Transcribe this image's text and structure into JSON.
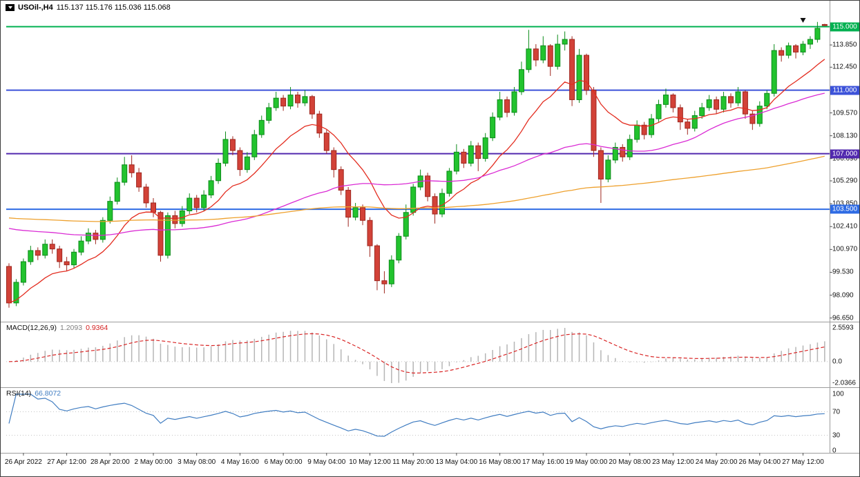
{
  "window": {
    "title": "USOil-,H4 115.137 115.176 115.036 115.068"
  },
  "header": {
    "symbol_period": "USOil-,H4",
    "ohlc": "115.137 115.176 115.036 115.068"
  },
  "colors": {
    "background": "#ffffff",
    "candle_up": "#22c32e",
    "candle_up_border": "#0c8a1a",
    "candle_down": "#d24238",
    "candle_down_border": "#9e261e",
    "ma_fast": "#e32c1f",
    "ma_medium": "#da2ad4",
    "ma_slow": "#eea02c",
    "macd_hist": "#b5b5b5",
    "macd_signal": "#d92424",
    "rsi_line": "#3f7cc1",
    "level_dotted": "#c4c4c4",
    "separator": "#9b9b9b",
    "axis_text": "#111111"
  },
  "chart_data": {
    "type": "candlestick",
    "symbol": "USOil-",
    "timeframe": "H4",
    "title": "USOil-,H4 115.137 115.176 115.036 115.068",
    "current_bar": {
      "open": 115.137,
      "high": 115.176,
      "low": 115.036,
      "close": 115.068
    },
    "ylim": [
      96.55,
      115.42
    ],
    "price_ticks": [
      {
        "label": "113.850",
        "price": 113.85
      },
      {
        "label": "112.450",
        "price": 112.45
      },
      {
        "label": "109.570",
        "price": 109.57
      },
      {
        "label": "108.130",
        "price": 108.13
      },
      {
        "label": "106.690",
        "price": 106.69
      },
      {
        "label": "105.290",
        "price": 105.29
      },
      {
        "label": "103.850",
        "price": 103.85
      },
      {
        "label": "102.410",
        "price": 102.41
      },
      {
        "label": "100.970",
        "price": 100.97
      },
      {
        "label": "99.530",
        "price": 99.53
      },
      {
        "label": "98.090",
        "price": 98.09
      },
      {
        "label": "96.650",
        "price": 96.65
      }
    ],
    "hlines": [
      {
        "label": "115.000",
        "price": 115.0,
        "color": "#00b050"
      },
      {
        "label": "111.000",
        "price": 111.0,
        "color": "#3c52d9"
      },
      {
        "label": "107.000",
        "price": 107.0,
        "color": "#5128ae"
      },
      {
        "label": "103.500",
        "price": 103.5,
        "color": "#2e6be4"
      }
    ],
    "moving_averages": [
      {
        "name": "fast",
        "method": "ema",
        "period": 13,
        "color": "#e32c1f",
        "seed": null
      },
      {
        "name": "medium",
        "method": "sma",
        "period": 45,
        "color": "#da2ad4",
        "seed": 102.4
      },
      {
        "name": "slow",
        "method": "sma",
        "period": 120,
        "color": "#eea02c",
        "seed": 103.0
      }
    ],
    "candles": [
      [
        99.9,
        100.1,
        97.3,
        97.6
      ],
      [
        97.6,
        99.1,
        97.4,
        98.9
      ],
      [
        98.9,
        100.4,
        98.7,
        100.2
      ],
      [
        100.2,
        101.2,
        100.0,
        100.9
      ],
      [
        100.9,
        101.1,
        100.3,
        100.6
      ],
      [
        100.6,
        101.6,
        100.4,
        101.3
      ],
      [
        101.3,
        101.6,
        100.7,
        101.0
      ],
      [
        101.0,
        101.2,
        99.8,
        100.2
      ],
      [
        100.2,
        100.5,
        99.6,
        100.0
      ],
      [
        100.0,
        101.0,
        99.8,
        100.8
      ],
      [
        100.8,
        101.8,
        100.6,
        101.5
      ],
      [
        101.5,
        102.3,
        101.3,
        102.0
      ],
      [
        102.0,
        102.2,
        101.3,
        101.6
      ],
      [
        101.6,
        103.0,
        101.4,
        102.8
      ],
      [
        102.8,
        104.3,
        102.6,
        104.0
      ],
      [
        104.0,
        105.5,
        103.8,
        105.2
      ],
      [
        105.2,
        106.8,
        105.0,
        106.3
      ],
      [
        106.3,
        106.9,
        105.5,
        105.8
      ],
      [
        105.8,
        106.1,
        104.6,
        104.9
      ],
      [
        104.9,
        105.1,
        103.6,
        103.9
      ],
      [
        103.9,
        104.2,
        103.0,
        103.3
      ],
      [
        103.3,
        103.4,
        100.2,
        100.6
      ],
      [
        100.6,
        103.3,
        100.4,
        103.1
      ],
      [
        103.1,
        103.4,
        102.3,
        102.6
      ],
      [
        102.6,
        103.7,
        102.4,
        103.4
      ],
      [
        103.4,
        104.5,
        103.2,
        104.2
      ],
      [
        104.2,
        104.4,
        103.3,
        103.6
      ],
      [
        103.6,
        104.7,
        103.4,
        104.4
      ],
      [
        104.4,
        105.6,
        104.2,
        105.3
      ],
      [
        105.3,
        106.7,
        105.1,
        106.4
      ],
      [
        106.4,
        108.4,
        106.2,
        107.9
      ],
      [
        107.9,
        108.1,
        106.9,
        107.2
      ],
      [
        107.2,
        107.4,
        105.6,
        106.0
      ],
      [
        106.0,
        107.1,
        105.8,
        106.8
      ],
      [
        106.8,
        108.5,
        106.6,
        108.2
      ],
      [
        108.2,
        109.4,
        108.0,
        109.1
      ],
      [
        109.1,
        110.2,
        108.9,
        109.9
      ],
      [
        109.9,
        110.9,
        109.7,
        110.5
      ],
      [
        110.5,
        110.7,
        109.7,
        110.0
      ],
      [
        110.0,
        111.2,
        109.8,
        110.7
      ],
      [
        110.7,
        110.9,
        109.9,
        110.2
      ],
      [
        110.2,
        111.0,
        110.0,
        110.6
      ],
      [
        110.6,
        110.7,
        109.2,
        109.5
      ],
      [
        109.5,
        109.7,
        108.0,
        108.3
      ],
      [
        108.3,
        108.5,
        107.0,
        107.2
      ],
      [
        107.2,
        107.4,
        105.5,
        106.0
      ],
      [
        106.0,
        106.2,
        104.4,
        104.7
      ],
      [
        104.7,
        104.9,
        102.4,
        103.0
      ],
      [
        103.0,
        103.9,
        102.8,
        103.6
      ],
      [
        103.6,
        103.8,
        102.5,
        102.8
      ],
      [
        102.8,
        103.0,
        100.5,
        101.2
      ],
      [
        101.2,
        101.3,
        98.4,
        99.0
      ],
      [
        99.0,
        99.6,
        98.2,
        98.8
      ],
      [
        98.8,
        100.6,
        98.6,
        100.3
      ],
      [
        100.3,
        102.0,
        100.1,
        101.8
      ],
      [
        101.8,
        103.8,
        101.6,
        103.3
      ],
      [
        103.3,
        105.1,
        103.1,
        104.9
      ],
      [
        104.9,
        106.0,
        104.7,
        105.6
      ],
      [
        105.6,
        105.8,
        104.0,
        104.3
      ],
      [
        104.3,
        104.5,
        102.6,
        103.2
      ],
      [
        103.2,
        104.8,
        103.0,
        104.5
      ],
      [
        104.5,
        106.1,
        104.3,
        105.9
      ],
      [
        105.9,
        107.6,
        105.7,
        107.1
      ],
      [
        107.1,
        107.3,
        106.1,
        106.4
      ],
      [
        106.4,
        107.8,
        106.2,
        107.5
      ],
      [
        107.5,
        107.7,
        105.9,
        106.7
      ],
      [
        106.7,
        108.3,
        106.5,
        108.0
      ],
      [
        108.0,
        109.6,
        107.8,
        109.3
      ],
      [
        109.3,
        110.9,
        109.1,
        110.4
      ],
      [
        110.4,
        110.6,
        109.3,
        109.6
      ],
      [
        109.6,
        111.2,
        109.4,
        110.9
      ],
      [
        110.9,
        112.8,
        110.7,
        112.3
      ],
      [
        112.3,
        114.8,
        112.1,
        113.6
      ],
      [
        113.6,
        113.9,
        112.5,
        112.9
      ],
      [
        112.9,
        114.4,
        112.7,
        113.8
      ],
      [
        113.8,
        113.9,
        111.9,
        112.5
      ],
      [
        112.5,
        114.5,
        112.3,
        113.9
      ],
      [
        113.9,
        114.7,
        113.5,
        114.2
      ],
      [
        114.2,
        114.4,
        110.0,
        110.4
      ],
      [
        110.4,
        113.6,
        110.2,
        113.2
      ],
      [
        113.2,
        113.3,
        110.7,
        111.0
      ],
      [
        111.0,
        111.2,
        106.8,
        107.2
      ],
      [
        107.2,
        107.4,
        103.9,
        105.4
      ],
      [
        105.4,
        106.9,
        105.2,
        106.6
      ],
      [
        106.6,
        107.7,
        106.4,
        107.4
      ],
      [
        107.4,
        107.6,
        106.5,
        106.8
      ],
      [
        106.8,
        108.2,
        106.6,
        107.9
      ],
      [
        107.9,
        109.1,
        107.7,
        108.8
      ],
      [
        108.8,
        109.0,
        107.9,
        108.2
      ],
      [
        108.2,
        109.5,
        108.0,
        109.2
      ],
      [
        109.2,
        110.4,
        109.0,
        110.1
      ],
      [
        110.1,
        111.1,
        109.9,
        110.7
      ],
      [
        110.7,
        110.8,
        109.6,
        109.9
      ],
      [
        109.9,
        110.1,
        108.5,
        109.0
      ],
      [
        109.0,
        109.2,
        108.2,
        108.6
      ],
      [
        108.6,
        109.7,
        108.4,
        109.4
      ],
      [
        109.4,
        110.2,
        109.2,
        109.9
      ],
      [
        109.9,
        110.7,
        109.7,
        110.4
      ],
      [
        110.4,
        110.6,
        109.5,
        109.8
      ],
      [
        109.8,
        110.9,
        109.6,
        110.6
      ],
      [
        110.6,
        110.8,
        109.9,
        110.2
      ],
      [
        110.2,
        111.2,
        110.0,
        110.9
      ],
      [
        110.9,
        111.0,
        109.2,
        109.5
      ],
      [
        109.5,
        109.7,
        108.5,
        108.9
      ],
      [
        108.9,
        110.3,
        108.7,
        110.0
      ],
      [
        110.0,
        111.0,
        109.8,
        110.8
      ],
      [
        110.8,
        113.9,
        110.6,
        113.5
      ],
      [
        113.5,
        113.7,
        112.8,
        113.2
      ],
      [
        113.2,
        114.0,
        113.0,
        113.8
      ],
      [
        113.8,
        113.9,
        113.0,
        113.4
      ],
      [
        113.4,
        114.1,
        113.2,
        113.9
      ],
      [
        113.9,
        114.4,
        113.6,
        114.2
      ],
      [
        114.2,
        115.3,
        114.0,
        114.9
      ],
      [
        115.14,
        115.18,
        115.04,
        115.07
      ]
    ],
    "time_axis": {
      "labels": [
        "26 Apr 2022",
        "27 Apr 12:00",
        "28 Apr 20:00",
        "2 May 00:00",
        "3 May 08:00",
        "4 May 16:00",
        "6 May 00:00",
        "9 May 04:00",
        "10 May 12:00",
        "11 May 20:00",
        "13 May 04:00",
        "16 May 08:00",
        "17 May 16:00",
        "19 May 00:00",
        "20 May 08:00",
        "23 May 12:00",
        "24 May 20:00",
        "26 May 04:00",
        "27 May 12:00"
      ],
      "bar_indices": [
        2,
        8,
        14,
        20,
        26,
        32,
        38,
        44,
        50,
        56,
        62,
        68,
        74,
        80,
        86,
        92,
        98,
        104,
        110
      ]
    },
    "indicators": {
      "macd": {
        "label": "MACD(12,26,9)",
        "fast": 12,
        "slow": 26,
        "signal": 9,
        "value_main": "1.2093",
        "value_signal": "0.9364",
        "axis_labels": [
          "2.5593",
          "0.0",
          "-2.0366"
        ]
      },
      "rsi": {
        "label": "RSI(14)",
        "period": 14,
        "value": "66.8072",
        "axis_labels": [
          "100",
          "70",
          "30",
          "0"
        ],
        "levels": [
          70,
          30
        ]
      }
    },
    "objects": [
      {
        "type": "arrow-down-marker",
        "bar_index": 110,
        "price": 115.55
      }
    ]
  }
}
